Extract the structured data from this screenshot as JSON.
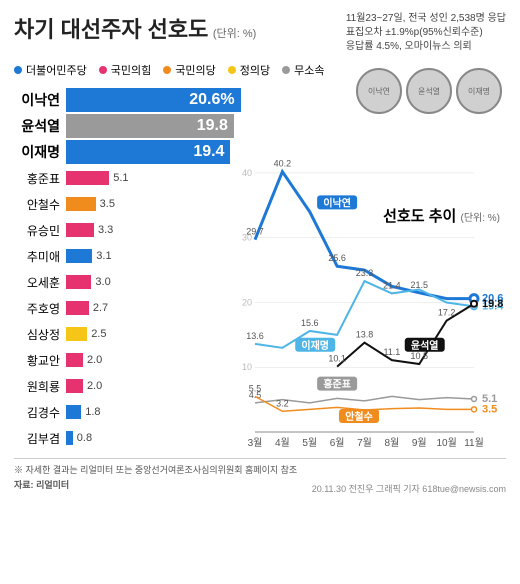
{
  "title": "차기 대선주자 선호도",
  "unit": "(단위: %)",
  "meta_lines": [
    "11월23~27일, 전국 성인 2,538명 응답",
    "표집오차 ±1.9%p(95%신뢰수준)",
    "응답률 4.5%, 오마이뉴스 의뢰"
  ],
  "parties": [
    {
      "name": "더불어민주당",
      "color": "#1e78d6"
    },
    {
      "name": "국민의힘",
      "color": "#e6326e"
    },
    {
      "name": "국민의당",
      "color": "#f08c1e"
    },
    {
      "name": "정의당",
      "color": "#f5c518"
    },
    {
      "name": "무소속",
      "color": "#9a9a9a"
    }
  ],
  "bar_max": 21,
  "candidates": [
    {
      "name": "이낙연",
      "value": 20.6,
      "color": "#1e78d6",
      "big": true,
      "pct": "%"
    },
    {
      "name": "윤석열",
      "value": 19.8,
      "color": "#9a9a9a",
      "big": true
    },
    {
      "name": "이재명",
      "value": 19.4,
      "color": "#1e78d6",
      "big": true
    },
    {
      "name": "홍준표",
      "value": 5.1,
      "color": "#e6326e"
    },
    {
      "name": "안철수",
      "value": 3.5,
      "color": "#f08c1e"
    },
    {
      "name": "유승민",
      "value": 3.3,
      "color": "#e6326e"
    },
    {
      "name": "추미애",
      "value": 3.1,
      "color": "#1e78d6"
    },
    {
      "name": "오세훈",
      "value": 3.0,
      "color": "#e6326e"
    },
    {
      "name": "주호영",
      "value": 2.7,
      "color": "#e6326e"
    },
    {
      "name": "심상정",
      "value": 2.5,
      "color": "#f5c518"
    },
    {
      "name": "황교안",
      "value": 2.0,
      "color": "#e6326e"
    },
    {
      "name": "원희룡",
      "value": 2.0,
      "color": "#e6326e"
    },
    {
      "name": "김경수",
      "value": 1.8,
      "color": "#1e78d6"
    },
    {
      "name": "김부겸",
      "value": 0.8,
      "color": "#1e78d6"
    }
  ],
  "trend": {
    "title": "선호도 추이",
    "unit": "(단위: %)",
    "months": [
      "3월",
      "4월",
      "5월",
      "6월",
      "7월",
      "8월",
      "9월",
      "10월",
      "11월"
    ],
    "ygrid": [
      10,
      20,
      30,
      40
    ],
    "ymax": 42,
    "ymin": 0,
    "series": [
      {
        "name": "이낙연",
        "color": "#1e78d6",
        "width": 3,
        "values": [
          29.7,
          40.2,
          34.0,
          25.6,
          25.0,
          22.5,
          21.5,
          20.6,
          20.6
        ],
        "end_label": "20.6",
        "label_x": 3,
        "label_y": 35,
        "show_pts": [
          0,
          1,
          3,
          6,
          8
        ]
      },
      {
        "name": "이재명",
        "color": "#4fb5e6",
        "width": 2,
        "values": [
          13.6,
          13.0,
          15.6,
          15.0,
          23.3,
          21.4,
          22.0,
          20.0,
          19.4
        ],
        "end_label": "19.4",
        "label_x": 2.2,
        "label_y": 13,
        "show_pts": [
          0,
          2,
          4,
          5,
          8
        ]
      },
      {
        "name": "윤석열",
        "color": "#111111",
        "width": 2,
        "values": [
          null,
          null,
          null,
          10.1,
          13.8,
          11.1,
          10.5,
          17.2,
          19.8
        ],
        "end_label": "19.8",
        "label_x": 6.2,
        "label_y": 13,
        "show_pts": [
          3,
          4,
          5,
          6,
          7,
          8
        ]
      },
      {
        "name": "홍준표",
        "color": "#9a9a9a",
        "width": 1.5,
        "values": [
          4.5,
          5.0,
          4.5,
          5.2,
          4.8,
          5.5,
          5.0,
          5.3,
          5.1
        ],
        "end_label": "5.1",
        "label_x": 3.0,
        "label_y": 7,
        "show_pts": [
          0,
          8
        ]
      },
      {
        "name": "안철수",
        "color": "#f08c1e",
        "width": 1.5,
        "values": [
          5.5,
          3.2,
          3.5,
          3.8,
          3.4,
          3.6,
          3.7,
          3.5,
          3.5
        ],
        "end_label": "3.5",
        "label_x": 3.8,
        "label_y": 2,
        "show_pts": [
          0,
          1,
          8
        ]
      }
    ]
  },
  "avatars": [
    "이낙연",
    "윤석열",
    "이재명"
  ],
  "footer_note": "※ 자세한 결과는 리얼미터 또는 중앙선거여론조사심의위원회 홈페이지 참조",
  "footer_source_label": "자료:",
  "footer_source": "리얼미터",
  "credit": "20.11.30  전진우 그래픽 기자 618tue@newsis.com"
}
